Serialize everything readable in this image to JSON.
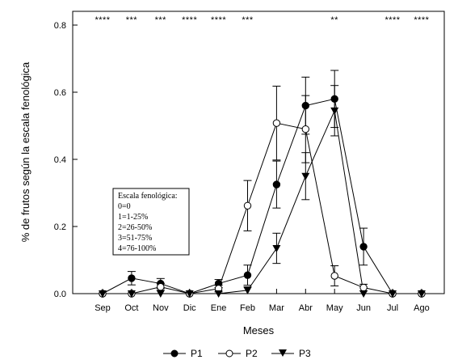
{
  "chart_data": {
    "type": "line",
    "xlabel": "Meses",
    "ylabel": "% de frutos según la escala fenológica",
    "categories": [
      "Sep",
      "Oct",
      "Nov",
      "Dic",
      "Ene",
      "Feb",
      "Mar",
      "Abr",
      "May",
      "Jun",
      "Jul",
      "Ago"
    ],
    "ylim": [
      0,
      0.8
    ],
    "yticks": [
      "0.0",
      "0.2",
      "0.4",
      "0.6",
      "0.8"
    ],
    "significance": [
      "****",
      "***",
      "***",
      "****",
      "****",
      "***",
      "",
      "",
      "**",
      "",
      "****",
      "****"
    ],
    "series": [
      {
        "name": "P1",
        "marker": "filled-circle",
        "values": [
          0,
          0.046,
          0.03,
          0,
          0.03,
          0.055,
          0.325,
          0.56,
          0.58,
          0.14,
          0,
          0
        ],
        "errors": [
          0,
          0.02,
          0.015,
          0,
          0.012,
          0.03,
          0.07,
          0.085,
          0.085,
          0.055,
          0,
          0
        ]
      },
      {
        "name": "P2",
        "marker": "open-circle",
        "values": [
          0,
          0,
          0.02,
          0,
          0.015,
          0.262,
          0.508,
          0.49,
          0.053,
          0.018,
          0,
          0
        ],
        "errors": [
          0,
          0,
          0.01,
          0,
          0.01,
          0.075,
          0.11,
          0.1,
          0.03,
          0.01,
          0,
          0
        ]
      },
      {
        "name": "P3",
        "marker": "filled-triangle-down",
        "values": [
          0,
          0,
          0,
          0,
          0,
          0.01,
          0.135,
          0.35,
          0.545,
          0,
          0,
          0
        ],
        "errors": [
          0,
          0,
          0,
          0,
          0,
          0.01,
          0.045,
          0.07,
          0.075,
          0,
          0,
          0
        ]
      }
    ],
    "legend_position": "bottom-center"
  },
  "scale_box": {
    "title": "Escala fenológica:",
    "items": [
      "0=0",
      "1=1-25%",
      "2=26-50%",
      "3=51-75%",
      "4=76-100%"
    ]
  }
}
